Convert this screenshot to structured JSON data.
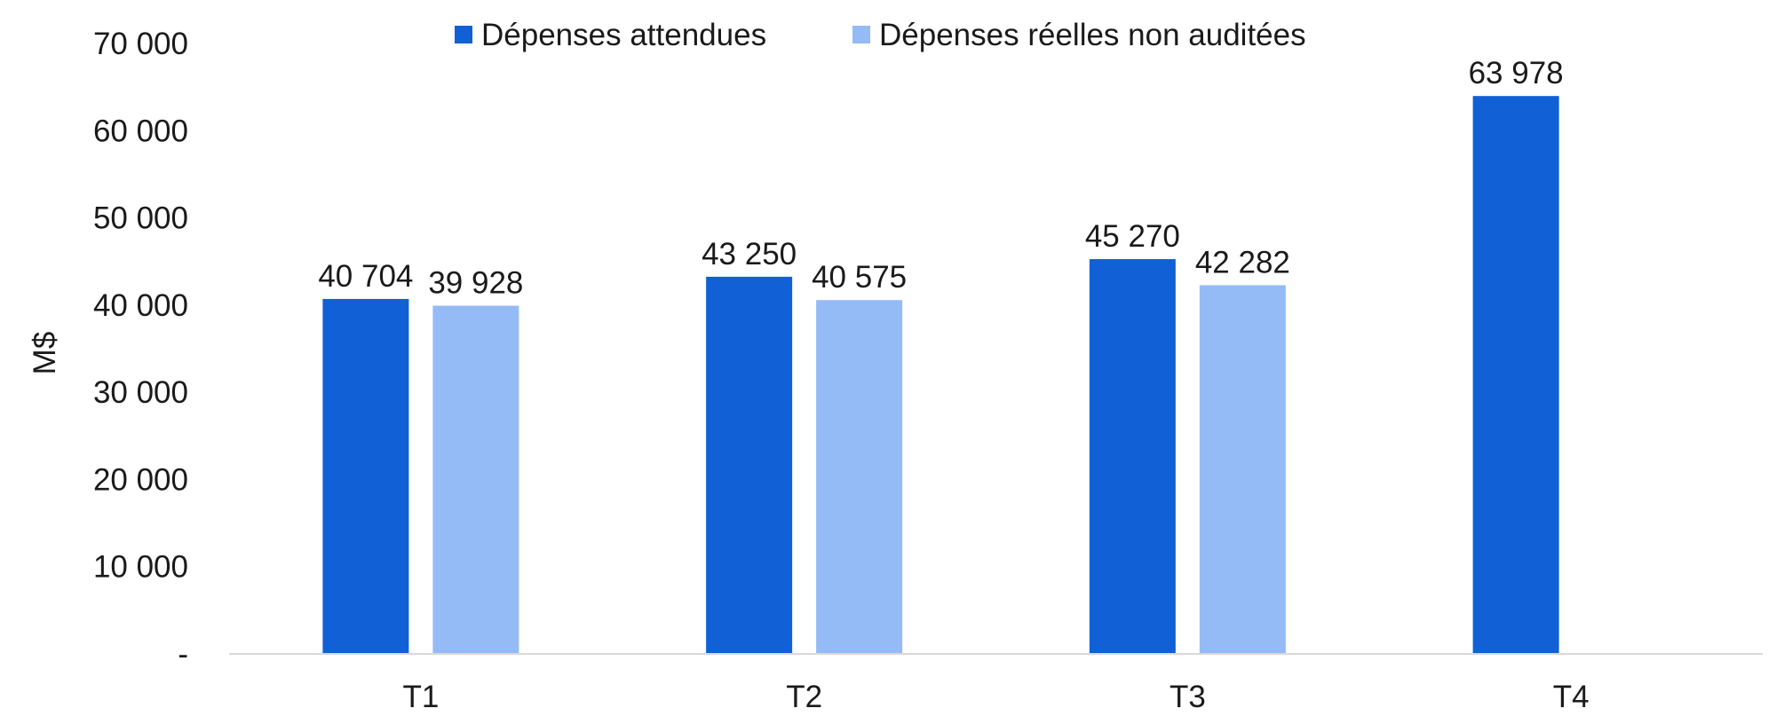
{
  "chart_data": {
    "type": "bar",
    "categories": [
      "T1",
      "T2",
      "T3",
      "T4"
    ],
    "series": [
      {
        "name": "Dépenses attendues",
        "color": "#1160d5",
        "values": [
          40704,
          43250,
          45270,
          63978
        ],
        "labels": [
          "40 704",
          "43 250",
          "45 270",
          "63 978"
        ]
      },
      {
        "name": "Dépenses réelles non auditées",
        "color": "#94bbf5",
        "values": [
          39928,
          40575,
          42282,
          null
        ],
        "labels": [
          "39 928",
          "40 575",
          "42 282",
          ""
        ]
      }
    ],
    "ylabel": "M$",
    "xlabel": "",
    "ylim": [
      0,
      70000
    ],
    "yticks": [
      0,
      10000,
      20000,
      30000,
      40000,
      50000,
      60000,
      70000
    ],
    "ytick_labels": [
      "-",
      "10 000",
      "20 000",
      "30 000",
      "40 000",
      "50 000",
      "60 000",
      "70 000"
    ],
    "grid": false,
    "legend_position": "top-center",
    "axis_color": "#d9d9d9"
  }
}
